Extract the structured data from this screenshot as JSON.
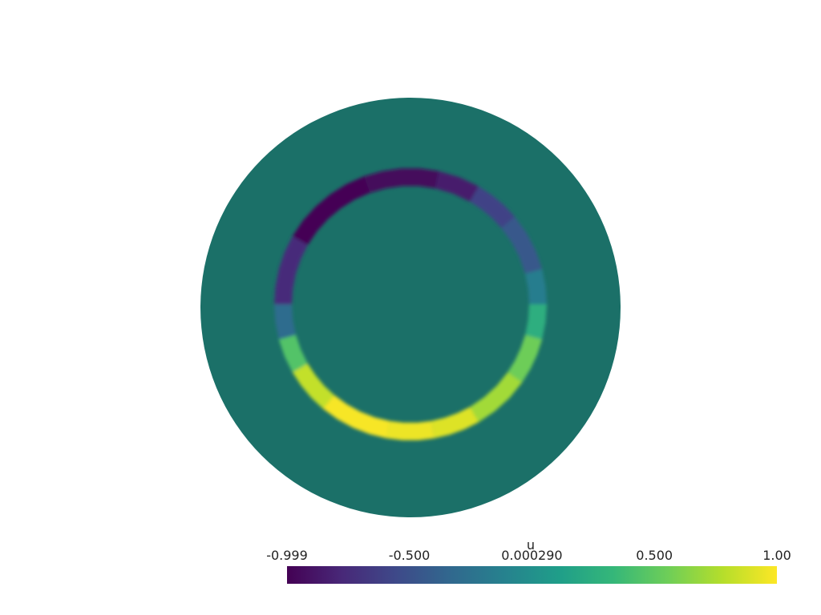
{
  "scene": {
    "domain_color": "#1b7068",
    "background": "#ffffff"
  },
  "field": {
    "name": "u",
    "range": [
      -0.999,
      1.0
    ],
    "ring_segments": [
      {
        "value": -0.99,
        "angle_start": 210,
        "angle_end": 250
      },
      {
        "value": -0.95,
        "angle_start": 250,
        "angle_end": 282
      },
      {
        "value": -0.85,
        "angle_start": 282,
        "angle_end": 300
      },
      {
        "value": -0.75,
        "angle_start": 180,
        "angle_end": 210
      },
      {
        "value": -0.6,
        "angle_start": 300,
        "angle_end": 320
      },
      {
        "value": -0.45,
        "angle_start": 320,
        "angle_end": 345
      },
      {
        "value": -0.3,
        "angle_start": 165,
        "angle_end": 180
      },
      {
        "value": -0.15,
        "angle_start": 345,
        "angle_end": 360
      },
      {
        "value": 0.25,
        "angle_start": 0,
        "angle_end": 15
      },
      {
        "value": 0.45,
        "angle_start": 150,
        "angle_end": 165
      },
      {
        "value": 0.55,
        "angle_start": 15,
        "angle_end": 35
      },
      {
        "value": 0.72,
        "angle_start": 35,
        "angle_end": 60
      },
      {
        "value": 0.82,
        "angle_start": 130,
        "angle_end": 150
      },
      {
        "value": 0.9,
        "angle_start": 60,
        "angle_end": 80
      },
      {
        "value": 0.95,
        "angle_start": 80,
        "angle_end": 100
      },
      {
        "value": 0.98,
        "angle_start": 100,
        "angle_end": 130
      }
    ]
  },
  "scalar_bar": {
    "title": "u",
    "colormap": "viridis",
    "colors": [
      "#440154",
      "#482878",
      "#3e4989",
      "#31688e",
      "#26828e",
      "#1f9e89",
      "#35b779",
      "#6ece58",
      "#b5de2b",
      "#fde725"
    ],
    "ticks": [
      {
        "label": "-0.999",
        "value": -0.999
      },
      {
        "label": "-0.500",
        "value": -0.5
      },
      {
        "label": "0.000290",
        "value": 0.00029
      },
      {
        "label": "0.500",
        "value": 0.5
      },
      {
        "label": "1.00",
        "value": 1.0
      }
    ]
  }
}
